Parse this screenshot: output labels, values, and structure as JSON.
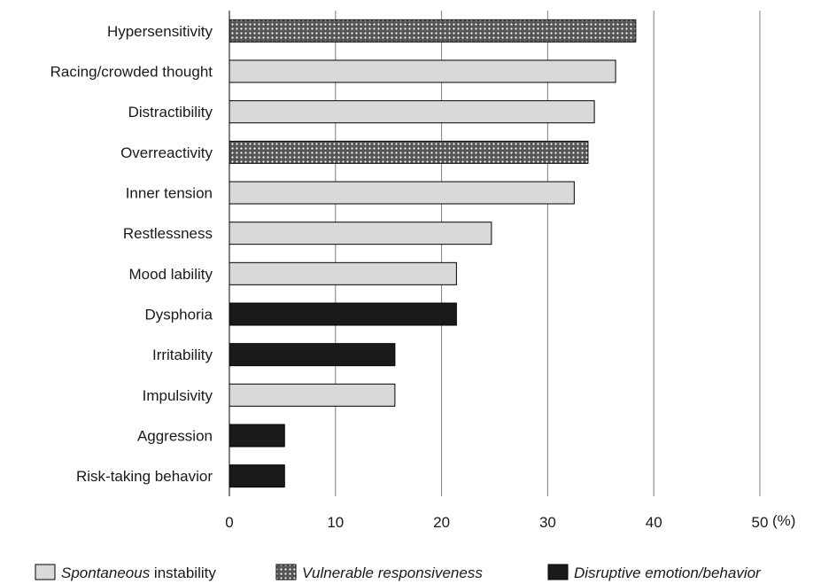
{
  "chart_data": {
    "type": "bar",
    "orientation": "horizontal",
    "categories": [
      "Hypersensitivity",
      "Racing/crowded thought",
      "Distractibility",
      "Overreactivity",
      "Inner tension",
      "Restlessness",
      "Mood lability",
      "Dysphoria",
      "Irritability",
      "Impulsivity",
      "Aggression",
      "Risk-taking behavior"
    ],
    "values": [
      38.3,
      36.4,
      34.4,
      33.8,
      32.5,
      24.7,
      21.4,
      21.4,
      15.6,
      15.6,
      5.2,
      5.2
    ],
    "groups": [
      "vulnerable",
      "spontaneous",
      "spontaneous",
      "vulnerable",
      "spontaneous",
      "spontaneous",
      "spontaneous",
      "disruptive",
      "disruptive",
      "spontaneous",
      "disruptive",
      "disruptive"
    ],
    "xlim": [
      0,
      50
    ],
    "xticks": [
      "0",
      "10",
      "20",
      "30",
      "40",
      "50"
    ],
    "x_unit": "(%)",
    "grid": "vertical",
    "legend_position": "bottom",
    "legend": [
      {
        "key": "spontaneous",
        "italic": "Spontaneous",
        "rest": " instability",
        "color": "#d9d9d9"
      },
      {
        "key": "vulnerable",
        "italic": "Vulnerable responsiveness",
        "rest": "",
        "color": "#595959"
      },
      {
        "key": "disruptive",
        "italic": "Disruptive emotion/behavior",
        "rest": "",
        "color": "#1a1a1a"
      }
    ]
  }
}
